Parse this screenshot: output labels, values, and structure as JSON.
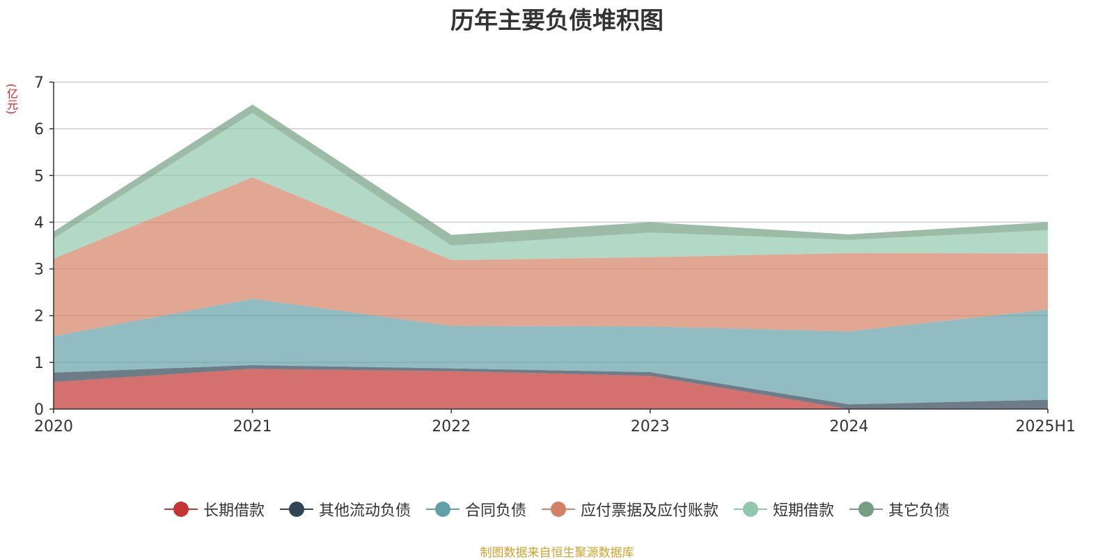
{
  "title": "历年主要负债堆积图",
  "unit_label": "(亿元)",
  "source": "制图数据来自恒生聚源数据库",
  "chart_data": {
    "type": "area",
    "stacked": true,
    "categories": [
      "2020",
      "2021",
      "2022",
      "2023",
      "2024",
      "2025H1"
    ],
    "ylim": [
      0,
      7
    ],
    "yticks": [
      "0",
      "1",
      "2",
      "3",
      "4",
      "5",
      "6",
      "7"
    ],
    "grid": true,
    "legend_position": "bottom",
    "series": [
      {
        "name": "长期借款",
        "color": "#c23531",
        "values": [
          0.58,
          0.86,
          0.81,
          0.71,
          0.0,
          0.0
        ]
      },
      {
        "name": "其他流动负债",
        "color": "#2f4554",
        "values": [
          0.2,
          0.08,
          0.06,
          0.08,
          0.1,
          0.2
        ]
      },
      {
        "name": "合同负债",
        "color": "#61a0a8",
        "values": [
          0.78,
          1.42,
          0.91,
          0.98,
          1.56,
          1.93
        ]
      },
      {
        "name": "应付票据及应付账款",
        "color": "#d48265",
        "values": [
          1.66,
          2.6,
          1.41,
          1.48,
          1.68,
          1.2
        ]
      },
      {
        "name": "短期借款",
        "color": "#91c7ae",
        "values": [
          0.43,
          1.38,
          0.31,
          0.53,
          0.28,
          0.5
        ]
      },
      {
        "name": "其它负债",
        "color": "#749f83",
        "values": [
          0.15,
          0.18,
          0.23,
          0.22,
          0.12,
          0.17
        ]
      }
    ]
  }
}
